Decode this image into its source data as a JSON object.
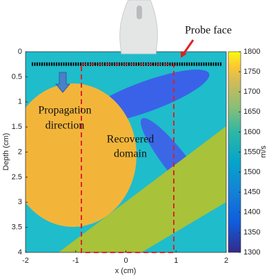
{
  "chart_data": {
    "type": "image",
    "annotations": {
      "probe": "Probe face",
      "propagation": [
        "Propagation",
        "direction"
      ],
      "domain": [
        "Recovered",
        "domain"
      ]
    },
    "xlabel": "x (cm)",
    "ylabel": "Depth (cm)",
    "xlim": [
      -2,
      2
    ],
    "xticks": [
      -2,
      -1,
      0,
      1,
      2
    ],
    "ylim": [
      4,
      0
    ],
    "yticks": [
      0,
      0.5,
      1,
      1.5,
      2,
      2.5,
      3,
      3.5,
      4
    ],
    "colorbar": {
      "label": "m/s",
      "clim": [
        1300,
        1800
      ],
      "ticks": [
        1300,
        1350,
        1400,
        1450,
        1500,
        1550,
        1600,
        1650,
        1700,
        1750,
        1800
      ]
    }
  }
}
